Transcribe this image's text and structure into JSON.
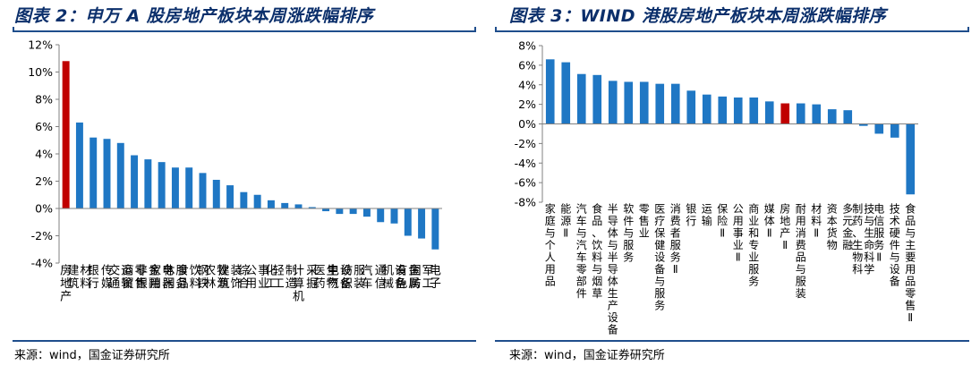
{
  "colors": {
    "bar": "#1f77c4",
    "highlight": "#c00000",
    "title": "#0b2f6b",
    "rule": "#1f4e8c",
    "axis": "#808080"
  },
  "left_panel": {
    "title": "图表 2：申万 A 股房地产板块本周涨跌幅排序",
    "source": "来源：wind，国金证券研究所"
  },
  "right_panel": {
    "title": "图表 3：WIND 港股房地产板块本周涨跌幅排序",
    "source": "来源：wind，国金证券研究所"
  },
  "chart_data": [
    {
      "type": "bar",
      "categories": [
        "房地产",
        "建筑材料",
        "银行",
        "传媒",
        "交通运输",
        "商贸零售",
        "非银金融",
        "家用电器",
        "休闲服务",
        "食品饮料",
        "钢铁",
        "农林牧渔",
        "建筑装饰",
        "综合",
        "公用事业",
        "化工",
        "轻工制造",
        "计算机",
        "采掘",
        "医药生物",
        "电气设备",
        "纺织服装",
        "汽车",
        "通信",
        "机械设备",
        "有色金属",
        "国防军工",
        "电子"
      ],
      "values": [
        10.8,
        6.3,
        5.2,
        5.1,
        4.8,
        3.9,
        3.6,
        3.4,
        3.0,
        3.0,
        2.6,
        2.1,
        1.7,
        1.2,
        1.0,
        0.6,
        0.4,
        0.3,
        0.1,
        -0.2,
        -0.4,
        -0.4,
        -0.6,
        -1.0,
        -1.1,
        -2.0,
        -2.2,
        -3.0
      ],
      "highlight": "房地产",
      "ylim": [
        -4,
        12
      ],
      "yticks": [
        "12%",
        "10%",
        "8%",
        "6%",
        "4%",
        "2%",
        "0%",
        "-2%",
        "-4%"
      ],
      "ytick_values": [
        12,
        10,
        8,
        6,
        4,
        2,
        0,
        -2,
        -4
      ],
      "grid": false,
      "title": "",
      "xlabel": "",
      "ylabel": ""
    },
    {
      "type": "bar",
      "categories": [
        "家庭与个人用品",
        "能源Ⅱ",
        "汽车与汽车零部件",
        "食品、饮料与烟草",
        "半导体与半导体生产设备",
        "软件与服务",
        "零售业",
        "医疗保健设备与服务",
        "消费者服务Ⅱ",
        "银行",
        "运输",
        "保险Ⅱ",
        "公用事业Ⅱ",
        "商业和专业服务",
        "媒体Ⅱ",
        "房地产Ⅱ",
        "耐用消费品与服装",
        "材料Ⅱ",
        "资本货物",
        "多元金融",
        "制药、生物科技与生命科学",
        "电信服务Ⅱ",
        "技术硬件与设备",
        "食品与主要用品零售Ⅱ"
      ],
      "values": [
        6.6,
        6.3,
        5.1,
        5.0,
        4.4,
        4.3,
        4.3,
        4.1,
        4.1,
        3.4,
        3.0,
        2.8,
        2.7,
        2.7,
        2.3,
        2.1,
        2.1,
        2.0,
        1.5,
        1.4,
        -0.2,
        -1.0,
        -1.4,
        -7.2
      ],
      "highlight": "房地产Ⅱ",
      "ylim": [
        -8,
        8
      ],
      "yticks": [
        "8%",
        "6%",
        "4%",
        "2%",
        "0%",
        "-2%",
        "-4%",
        "-6%",
        "-8%"
      ],
      "ytick_values": [
        8,
        6,
        4,
        2,
        0,
        -2,
        -4,
        -6,
        -8
      ],
      "grid": false,
      "title": "",
      "xlabel": "",
      "ylabel": ""
    }
  ]
}
